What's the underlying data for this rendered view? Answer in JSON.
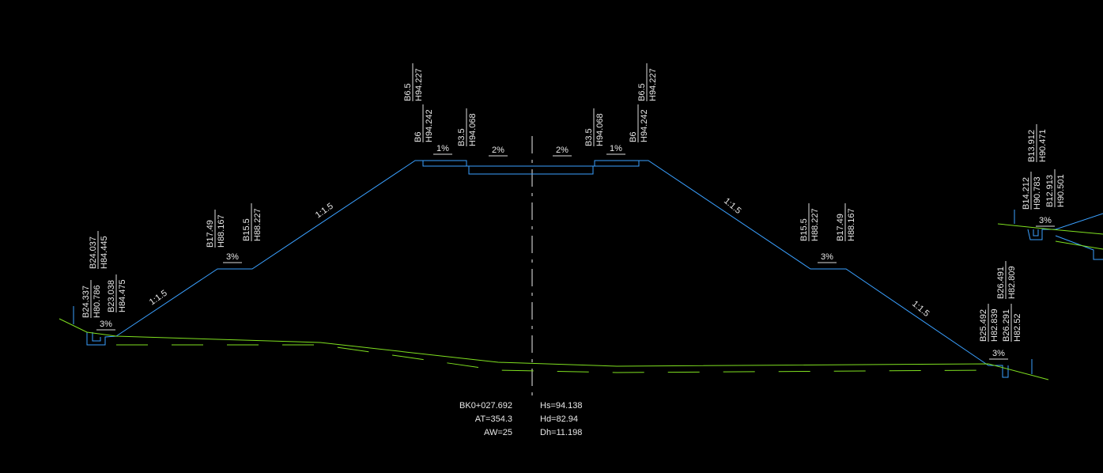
{
  "stations": [
    {
      "b": "B24.337",
      "h": "H80.786"
    },
    {
      "b": "B23.038",
      "h": "H84.475"
    },
    {
      "b": "B24.037",
      "h": "H84.445"
    },
    {
      "b": "B17.49",
      "h": "H88.167"
    },
    {
      "b": "B15.5",
      "h": "H88.227"
    },
    {
      "b": "B6.5",
      "h": "H94.227"
    },
    {
      "b": "B6",
      "h": "H94.242"
    },
    {
      "b": "B3.5",
      "h": "H94.068"
    },
    {
      "b": "B3.5",
      "h": "H94.068"
    },
    {
      "b": "B6",
      "h": "H94.242"
    },
    {
      "b": "B6.5",
      "h": "H94.227"
    },
    {
      "b": "B15.5",
      "h": "H88.227"
    },
    {
      "b": "B17.49",
      "h": "H88.167"
    },
    {
      "b": "B25.492",
      "h": "H82.839"
    },
    {
      "b": "B26.291",
      "h": "H82.52"
    },
    {
      "b": "B26.491",
      "h": "H82.809"
    },
    {
      "b": "B14.212",
      "h": "H90.783"
    },
    {
      "b": "B12.913",
      "h": "H90.501"
    },
    {
      "b": "B13.912",
      "h": "H90.471"
    }
  ],
  "slopes": [
    "1:1.5",
    "1:1.5",
    "1:1.5",
    "1:1.5"
  ],
  "grades": [
    "3%",
    "3%",
    "1%",
    "2%",
    "2%",
    "1%",
    "3%",
    "3%",
    "3%"
  ],
  "summary": {
    "left": [
      "BK0+027.692",
      "AT=354.3",
      "AW=25"
    ],
    "right": [
      "Hs=94.138",
      "Hd=82.94",
      "Dh=11.198"
    ]
  }
}
